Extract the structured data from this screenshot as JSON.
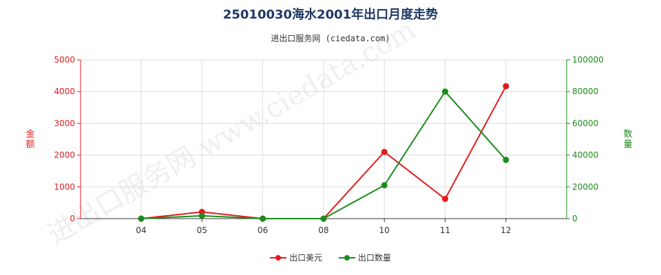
{
  "title": "25010030海水2001年出口月度走势",
  "subtitle": "进出口服务网 (ciedata.com)",
  "watermark": "进出口服务网 www.ciedata.com",
  "colors": {
    "usd": "#e31a1c",
    "qty": "#1a8c1a",
    "title": "#1f3864"
  },
  "chart_data": {
    "type": "line",
    "categories": [
      "04",
      "05",
      "06",
      "08",
      "10",
      "11",
      "12"
    ],
    "series": [
      {
        "name": "出口美元",
        "axis": "left",
        "color": "#e31a1c",
        "values": [
          0,
          210,
          0,
          0,
          2100,
          620,
          4170
        ]
      },
      {
        "name": "出口数量",
        "axis": "right",
        "color": "#1a8c1a",
        "values": [
          0,
          1800,
          0,
          0,
          21000,
          80000,
          37000
        ]
      }
    ],
    "y_left": {
      "label": "金额",
      "ticks": [
        "0",
        "1000",
        "2000",
        "3000",
        "4000",
        "5000"
      ],
      "range": [
        0,
        5000
      ]
    },
    "y_right": {
      "label": "数量",
      "ticks": [
        "0",
        "20000",
        "40000",
        "60000",
        "80000",
        "100000"
      ],
      "range": [
        0,
        100000
      ]
    },
    "grid": true,
    "legend_position": "bottom"
  }
}
